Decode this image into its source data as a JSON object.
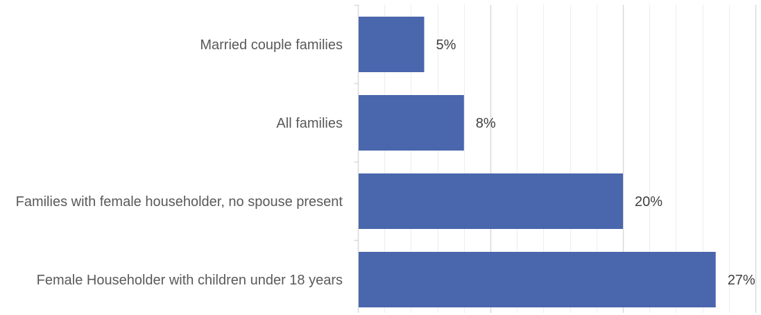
{
  "chart_data": {
    "type": "bar",
    "orientation": "horizontal",
    "categories": [
      "Married couple families",
      "All families",
      "Families with female householder, no spouse present",
      "Female Householder with children under 18 years"
    ],
    "category_label_lines": [
      [
        "Married couple families"
      ],
      [
        "All families"
      ],
      [
        "Families with female householder, no spouse present"
      ],
      [
        "Female Householder with children under 18 years"
      ]
    ],
    "values": [
      5,
      8,
      20,
      27
    ],
    "data_labels": [
      "5%",
      "8%",
      "20%",
      "27%"
    ],
    "value_format": "percent",
    "xlim": [
      0,
      30
    ],
    "major_gridlines_at": [
      0,
      10,
      20,
      30
    ],
    "minor_gridline_step": 2,
    "grid": true,
    "legend": "none",
    "title": "",
    "xlabel": "",
    "ylabel": "",
    "colors": {
      "bar": "#4A66AC",
      "major_grid": "#D9D9D9",
      "minor_grid": "#EDEDED",
      "axis": "#D9D9D9"
    }
  }
}
